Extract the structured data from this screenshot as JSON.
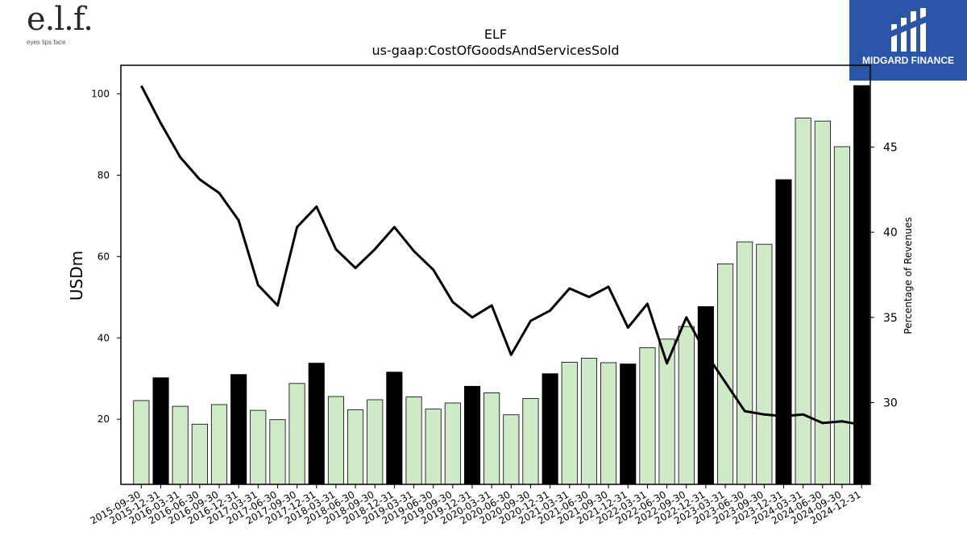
{
  "brands": {
    "left_logo": "e.l.f.",
    "left_tagline": "eyes lips face",
    "right_logo": "MIDGARD FINANCE"
  },
  "colors": {
    "bar_regular": "#cfeac6",
    "bar_highlight": "#000000",
    "line": "#000000",
    "brand_blue": "#2b56a8"
  },
  "chart_data": {
    "type": "bar",
    "title": "ELF",
    "subtitle": "us-gaap:CostOfGoodsAndServicesSold",
    "ylabel": "USDm",
    "y2label": "Percentage of Revenues",
    "ylim": [
      4,
      107
    ],
    "y2lim": [
      25.2,
      49.8
    ],
    "yticks": [
      20,
      40,
      60,
      80,
      100
    ],
    "y2ticks": [
      30,
      35,
      40,
      45
    ],
    "categories": [
      "2015-09-30",
      "2015-12-31",
      "2016-03-31",
      "2016-06-30",
      "2016-09-30",
      "2016-12-31",
      "2017-03-31",
      "2017-06-30",
      "2017-09-30",
      "2017-12-31",
      "2018-03-31",
      "2018-06-30",
      "2018-09-30",
      "2018-12-31",
      "2019-03-31",
      "2019-06-30",
      "2019-09-30",
      "2019-12-31",
      "2020-03-31",
      "2020-06-30",
      "2020-09-30",
      "2020-12-31",
      "2021-03-31",
      "2021-06-30",
      "2021-09-30",
      "2021-12-31",
      "2022-03-31",
      "2022-06-30",
      "2022-09-30",
      "2022-12-31",
      "2023-03-31",
      "2023-06-30",
      "2023-09-30",
      "2023-12-31",
      "2024-03-31",
      "2024-06-30",
      "2024-09-30",
      "2024-12-31"
    ],
    "series": [
      {
        "kind": "bar",
        "axis": "left",
        "values": [
          24.6,
          30.2,
          23.2,
          18.8,
          23.6,
          31.0,
          22.2,
          19.9,
          28.8,
          33.8,
          25.6,
          22.3,
          24.8,
          31.6,
          25.5,
          22.5,
          24.0,
          28.1,
          26.5,
          21.1,
          25.1,
          31.2,
          34.0,
          35.0,
          33.9,
          33.6,
          37.6,
          39.7,
          42.8,
          47.7,
          58.2,
          63.6,
          63.0,
          78.9,
          94.0,
          93.3,
          87.0,
          102.0
        ],
        "highlight": [
          false,
          true,
          false,
          false,
          false,
          true,
          false,
          false,
          false,
          true,
          false,
          false,
          false,
          true,
          false,
          false,
          false,
          true,
          false,
          false,
          false,
          true,
          false,
          false,
          false,
          true,
          false,
          false,
          false,
          true,
          false,
          false,
          false,
          true,
          false,
          false,
          false,
          true
        ]
      },
      {
        "kind": "line",
        "axis": "right",
        "values": [
          48.6,
          46.4,
          44.4,
          43.1,
          42.3,
          40.7,
          36.9,
          35.7,
          40.3,
          41.5,
          39.0,
          37.9,
          39.0,
          40.3,
          38.9,
          37.8,
          35.9,
          35.0,
          35.7,
          32.8,
          34.8,
          35.4,
          36.7,
          36.2,
          36.8,
          34.4,
          35.8,
          32.3,
          35.0,
          32.9,
          31.2,
          29.5,
          29.3,
          29.2,
          29.3,
          28.8,
          28.9,
          28.7
        ]
      }
    ]
  }
}
